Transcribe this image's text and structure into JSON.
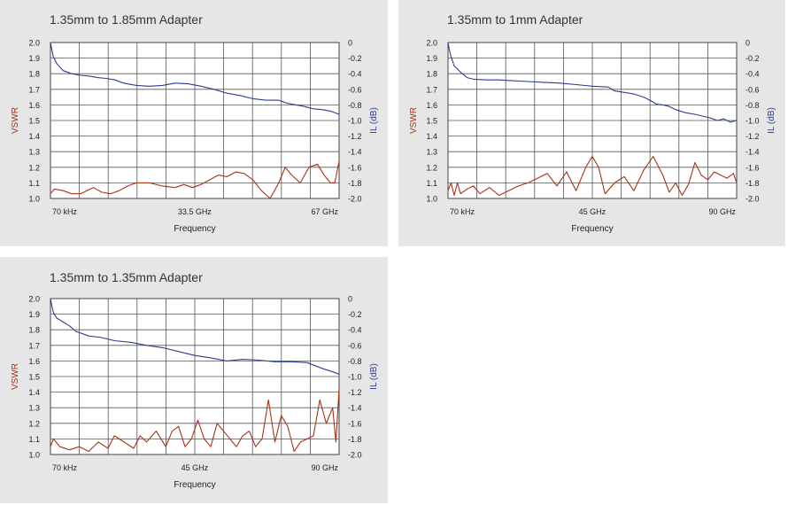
{
  "colors": {
    "vswr": "#a83218",
    "il": "#2c3d91",
    "grid": "#555555",
    "panel": "#e6e6e6"
  },
  "chart_data": [
    {
      "type": "line",
      "title": "1.35mm to 1.85mm Adapter",
      "xlabel": "Frequency",
      "ylabel_left": "VSWR",
      "ylabel_right": "IL (dB)",
      "xlim": [
        0.07,
        67
      ],
      "ylim_left": [
        1.0,
        2.0
      ],
      "ylim_right": [
        -2.0,
        0
      ],
      "x_ticks": [
        {
          "value": 0.07,
          "label": "70 kHz"
        },
        {
          "value": 33.5,
          "label": "33.5 GHz"
        },
        {
          "value": 67,
          "label": "67 GHz"
        }
      ],
      "y_ticks_left": [
        "2.0",
        "1.9",
        "1.8",
        "1.7",
        "1.6",
        "1.5",
        "1.4",
        "1.3",
        "1.2",
        "1.1",
        "1.0"
      ],
      "y_ticks_right": [
        "0",
        "-0.2",
        "-0.4",
        "-0.6",
        "-0.8",
        "-1.0",
        "-1.2",
        "-1.4",
        "-1.6",
        "-1.8",
        "-2.0"
      ],
      "grid": true,
      "series": [
        {
          "name": "VSWR",
          "axis": "left",
          "x": [
            0.07,
            1,
            3,
            5,
            7,
            8.5,
            10,
            12,
            14,
            16,
            18,
            20,
            23,
            26,
            29,
            31,
            33,
            35,
            37,
            39,
            41,
            43,
            45,
            47,
            49,
            51,
            53,
            54.5,
            56,
            58,
            60,
            62,
            63.5,
            65,
            66,
            67
          ],
          "y": [
            1.03,
            1.06,
            1.05,
            1.03,
            1.03,
            1.05,
            1.07,
            1.04,
            1.03,
            1.05,
            1.08,
            1.1,
            1.1,
            1.08,
            1.07,
            1.09,
            1.07,
            1.09,
            1.12,
            1.15,
            1.14,
            1.17,
            1.16,
            1.12,
            1.05,
            1.0,
            1.1,
            1.2,
            1.15,
            1.1,
            1.2,
            1.22,
            1.15,
            1.1,
            1.1,
            1.24
          ]
        },
        {
          "name": "IL",
          "axis": "right",
          "x": [
            0.07,
            0.7,
            1.5,
            3,
            5,
            7,
            9,
            11,
            13,
            15,
            17,
            20,
            23,
            26,
            29,
            32,
            35,
            38,
            41,
            44,
            47,
            50,
            53,
            55,
            57,
            59,
            61,
            63,
            65,
            67
          ],
          "y": [
            0.0,
            -0.18,
            -0.27,
            -0.36,
            -0.4,
            -0.42,
            -0.43,
            -0.45,
            -0.46,
            -0.48,
            -0.52,
            -0.55,
            -0.56,
            -0.55,
            -0.52,
            -0.53,
            -0.56,
            -0.6,
            -0.65,
            -0.68,
            -0.72,
            -0.74,
            -0.74,
            -0.78,
            -0.8,
            -0.82,
            -0.85,
            -0.86,
            -0.88,
            -0.92
          ]
        }
      ]
    },
    {
      "type": "line",
      "title": "1.35mm to 1mm Adapter",
      "xlabel": "Frequency",
      "ylabel_left": "VSWR",
      "ylabel_right": "IL (dB)",
      "xlim": [
        0.07,
        90
      ],
      "ylim_left": [
        1.0,
        2.0
      ],
      "ylim_right": [
        -2.0,
        0
      ],
      "x_ticks": [
        {
          "value": 0.07,
          "label": "70 kHz"
        },
        {
          "value": 45,
          "label": "45 GHz"
        },
        {
          "value": 90,
          "label": "90 GHz"
        }
      ],
      "y_ticks_left": [
        "2.0",
        "1.9",
        "1.8",
        "1.7",
        "1.6",
        "1.5",
        "1.4",
        "1.3",
        "1.2",
        "1.1",
        "1.0"
      ],
      "y_ticks_right": [
        "0",
        "-0.2",
        "-0.4",
        "-0.6",
        "-0.8",
        "-1.0",
        "-1.2",
        "-1.4",
        "-1.6",
        "-1.8",
        "-2.0"
      ],
      "grid": true,
      "series": [
        {
          "name": "VSWR",
          "axis": "left",
          "x": [
            0.07,
            1,
            2,
            3,
            4,
            6,
            8,
            10,
            13,
            16,
            19,
            22,
            25,
            28,
            31,
            34,
            37,
            40,
            43,
            45,
            47,
            49,
            52,
            55,
            58,
            61,
            64,
            67,
            69,
            71,
            73,
            75,
            77,
            79,
            81,
            83,
            85,
            87,
            89,
            90
          ],
          "y": [
            1.05,
            1.1,
            1.02,
            1.1,
            1.03,
            1.06,
            1.08,
            1.03,
            1.07,
            1.02,
            1.05,
            1.08,
            1.1,
            1.13,
            1.16,
            1.08,
            1.17,
            1.05,
            1.2,
            1.27,
            1.2,
            1.03,
            1.1,
            1.14,
            1.05,
            1.18,
            1.27,
            1.15,
            1.04,
            1.1,
            1.02,
            1.09,
            1.23,
            1.15,
            1.12,
            1.17,
            1.15,
            1.13,
            1.16,
            1.1
          ]
        },
        {
          "name": "IL",
          "axis": "right",
          "x": [
            0.07,
            0.5,
            1,
            2,
            4,
            6,
            8,
            12,
            16,
            20,
            25,
            30,
            35,
            40,
            45,
            50,
            52,
            55,
            58,
            61,
            63,
            65,
            67,
            69,
            71,
            74,
            77,
            80,
            82,
            84,
            86,
            88,
            90
          ],
          "y": [
            0.0,
            -0.1,
            -0.18,
            -0.3,
            -0.38,
            -0.45,
            -0.47,
            -0.48,
            -0.48,
            -0.49,
            -0.5,
            -0.51,
            -0.52,
            -0.54,
            -0.56,
            -0.57,
            -0.62,
            -0.64,
            -0.66,
            -0.7,
            -0.74,
            -0.79,
            -0.8,
            -0.82,
            -0.86,
            -0.9,
            -0.92,
            -0.95,
            -0.97,
            -1.0,
            -0.98,
            -1.02,
            -1.0
          ]
        }
      ]
    },
    {
      "type": "line",
      "title": "1.35mm to 1.35mm Adapter",
      "xlabel": "Frequency",
      "ylabel_left": "VSWR",
      "ylabel_right": "IL (dB)",
      "xlim": [
        0.07,
        90
      ],
      "ylim_left": [
        1.0,
        2.0
      ],
      "ylim_right": [
        -2.0,
        0
      ],
      "x_ticks": [
        {
          "value": 0.07,
          "label": "70 kHz"
        },
        {
          "value": 45,
          "label": "45 GHz"
        },
        {
          "value": 90,
          "label": "90 GHz"
        }
      ],
      "y_ticks_left": [
        "2.0",
        "1.9",
        "1.8",
        "1.7",
        "1.6",
        "1.5",
        "1.4",
        "1.3",
        "1.2",
        "1.1",
        "1.0"
      ],
      "y_ticks_right": [
        "0",
        "-0.2",
        "-0.4",
        "-0.6",
        "-0.8",
        "-1.0",
        "-1.2",
        "-1.4",
        "-1.6",
        "-1.8",
        "-2.0"
      ],
      "grid": true,
      "series": [
        {
          "name": "VSWR",
          "axis": "left",
          "x": [
            0.07,
            1,
            3,
            6,
            9,
            12,
            15,
            18,
            20,
            23,
            26,
            28,
            30,
            33,
            36,
            38,
            40,
            42,
            44,
            46,
            48,
            50,
            52,
            54,
            56,
            58,
            60,
            62,
            64,
            66,
            68,
            70,
            72,
            74,
            76,
            78,
            80,
            82,
            84,
            86,
            88,
            89,
            90
          ],
          "y": [
            1.05,
            1.1,
            1.05,
            1.03,
            1.05,
            1.02,
            1.08,
            1.04,
            1.12,
            1.08,
            1.04,
            1.12,
            1.08,
            1.15,
            1.05,
            1.15,
            1.18,
            1.05,
            1.1,
            1.22,
            1.1,
            1.05,
            1.2,
            1.15,
            1.1,
            1.05,
            1.12,
            1.15,
            1.05,
            1.1,
            1.35,
            1.08,
            1.25,
            1.18,
            1.02,
            1.08,
            1.1,
            1.12,
            1.35,
            1.2,
            1.3,
            1.08,
            1.42
          ]
        },
        {
          "name": "IL",
          "axis": "right",
          "x": [
            0.07,
            0.5,
            1,
            2,
            4,
            6,
            8,
            12,
            16,
            20,
            25,
            30,
            35,
            40,
            45,
            50,
            55,
            60,
            65,
            70,
            75,
            80,
            85,
            88,
            90
          ],
          "y": [
            0.0,
            -0.1,
            -0.18,
            -0.25,
            -0.3,
            -0.35,
            -0.42,
            -0.48,
            -0.5,
            -0.54,
            -0.56,
            -0.6,
            -0.63,
            -0.68,
            -0.73,
            -0.76,
            -0.8,
            -0.78,
            -0.79,
            -0.81,
            -0.81,
            -0.82,
            -0.9,
            -0.94,
            -0.97
          ]
        }
      ]
    }
  ]
}
